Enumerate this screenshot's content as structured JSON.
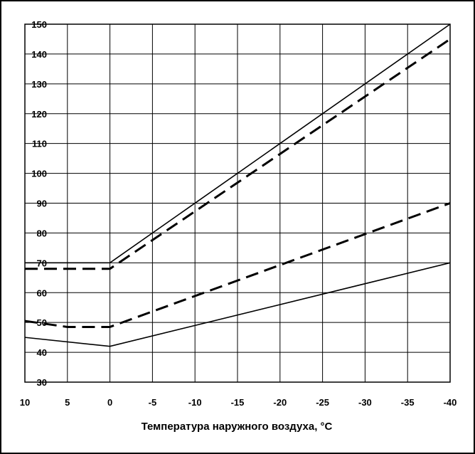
{
  "chart_data": {
    "type": "line",
    "title": "",
    "xlabel": "Температура наружного воздуха, °С",
    "ylabel": "",
    "x_ticks": [
      "10",
      "5",
      "0",
      "-5",
      "-10",
      "-15",
      "-20",
      "-25",
      "-30",
      "-35",
      "-40"
    ],
    "y_ticks": [
      "30",
      "40",
      "50",
      "60",
      "70",
      "80",
      "90",
      "100",
      "110",
      "120",
      "130",
      "140",
      "150"
    ],
    "xlim": [
      10,
      -40
    ],
    "ylim": [
      30,
      150
    ],
    "grid": true,
    "series": [
      {
        "style": "solid",
        "x": [
          10,
          0,
          -40
        ],
        "y": [
          70,
          70,
          150
        ]
      },
      {
        "style": "dashed",
        "x": [
          10,
          0,
          -40
        ],
        "y": [
          68,
          68,
          145
        ]
      },
      {
        "style": "dashed",
        "x": [
          10,
          5,
          0,
          -40
        ],
        "y": [
          50.5,
          48.5,
          48.5,
          90
        ]
      },
      {
        "style": "solid",
        "x": [
          10,
          0,
          -40
        ],
        "y": [
          45,
          42,
          70
        ]
      }
    ]
  }
}
